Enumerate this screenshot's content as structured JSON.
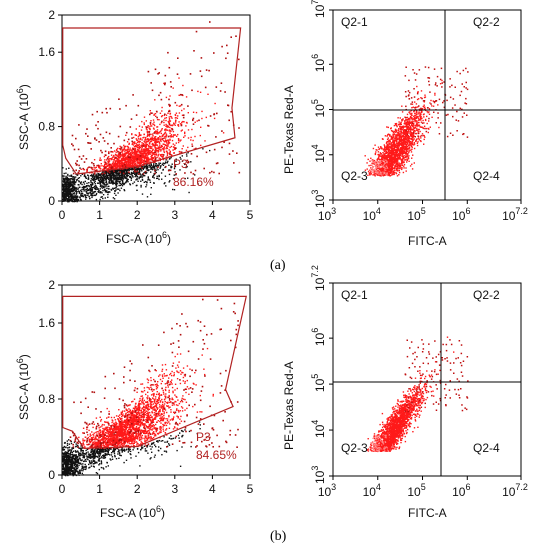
{
  "panels": [
    {
      "label": "(a)",
      "scatter": {
        "ylabel": "SSC-A",
        "ylabel_exp": "(10",
        "ylabel_sup": "6",
        "ylabel_close": ")",
        "xlabel": "FSC-A",
        "xlabel_exp": "(10",
        "xlabel_sup": "6",
        "xlabel_close": ")",
        "gate_name": "P3",
        "gate_pct": "86.16%"
      },
      "quadrant": {
        "ylabel": "PE-Texas Red-A",
        "xlabel": "FITC-A",
        "q1": "Q2-1",
        "q2": "Q2-2",
        "q3": "Q2-3",
        "q4": "Q2-4"
      }
    },
    {
      "label": "(b)",
      "scatter": {
        "ylabel": "SSC-A",
        "ylabel_exp": "(10",
        "ylabel_sup": "6",
        "ylabel_close": ")",
        "xlabel": "FSC-A",
        "xlabel_exp": "(10",
        "xlabel_sup": "6",
        "xlabel_close": ")",
        "gate_name": "P3",
        "gate_pct": "84.65%"
      },
      "quadrant": {
        "ylabel": "PE-Texas Red-A",
        "xlabel": "FITC-A",
        "q1": "Q2-1",
        "q2": "Q2-2",
        "q3": "Q2-3",
        "q4": "Q2-4"
      }
    }
  ],
  "chart_data": [
    {
      "type": "scatter",
      "panel": "a-left",
      "xlabel": "FSC-A (10^6)",
      "ylabel": "SSC-A (10^6)",
      "xlim": [
        0,
        5
      ],
      "ylim": [
        0,
        2
      ],
      "xticks": [
        "0",
        "1",
        "2",
        "3",
        "4",
        "5"
      ],
      "yticks": [
        "0",
        "0.8",
        "1.6",
        "2"
      ],
      "grid": false,
      "colors": {
        "gated": "#ff1a1a",
        "ungated": "#111111",
        "gate_line": "#b22222"
      },
      "gate": {
        "name": "P3",
        "percent": 86.16,
        "vertices": [
          [
            0.02,
            1.86
          ],
          [
            4.75,
            1.86
          ],
          [
            4.52,
            1.0
          ],
          [
            4.6,
            0.68
          ],
          [
            2.0,
            0.37
          ],
          [
            0.38,
            0.29
          ],
          [
            0.1,
            0.46
          ],
          [
            0.02,
            0.6
          ]
        ]
      },
      "populations": [
        {
          "name": "gated",
          "percent": 86.16,
          "center": [
            1.8,
            0.42
          ],
          "spread_x": 0.7,
          "spread_y": 0.16
        },
        {
          "name": "debris",
          "center": [
            0.15,
            0.12
          ],
          "spread_x": 0.15,
          "spread_y": 0.1
        }
      ]
    },
    {
      "type": "scatter",
      "panel": "a-right",
      "xlabel": "FITC-A",
      "ylabel": "PE-Texas Red-A",
      "xscale": "log",
      "yscale": "log",
      "xlim": [
        1000,
        15848932
      ],
      "ylim": [
        1000,
        15848932
      ],
      "xticks": [
        "10^3",
        "10^4",
        "10^5",
        "10^6",
        "10^7.2"
      ],
      "yticks": [
        "10^3",
        "10^4",
        "10^5",
        "10^6",
        "10^7.2"
      ],
      "quadrant_x": 251189,
      "quadrant_y": 125893,
      "quadrants": [
        "Q2-1",
        "Q2-2",
        "Q2-3",
        "Q2-4"
      ],
      "colors": {
        "points": "#ff1a1a"
      }
    },
    {
      "type": "scatter",
      "panel": "b-left",
      "xlabel": "FSC-A (10^6)",
      "ylabel": "SSC-A (10^6)",
      "xlim": [
        0,
        5
      ],
      "ylim": [
        0,
        2
      ],
      "xticks": [
        "0",
        "1",
        "2",
        "3",
        "4",
        "5"
      ],
      "yticks": [
        "0",
        "0.8",
        "1.6",
        "2"
      ],
      "grid": false,
      "colors": {
        "gated": "#ff1a1a",
        "ungated": "#111111",
        "gate_line": "#b22222"
      },
      "gate": {
        "name": "P3",
        "percent": 84.65,
        "vertices": [
          [
            0.02,
            1.88
          ],
          [
            4.9,
            1.88
          ],
          [
            4.35,
            0.9
          ],
          [
            4.55,
            0.72
          ],
          [
            2.0,
            0.3
          ],
          [
            0.58,
            0.28
          ],
          [
            0.28,
            0.46
          ],
          [
            0.02,
            0.5
          ]
        ]
      },
      "populations": [
        {
          "name": "gated",
          "percent": 84.65,
          "center": [
            1.7,
            0.48
          ],
          "spread_x": 0.7,
          "spread_y": 0.17
        },
        {
          "name": "debris",
          "center": [
            0.15,
            0.12
          ],
          "spread_x": 0.15,
          "spread_y": 0.1
        }
      ]
    },
    {
      "type": "scatter",
      "panel": "b-right",
      "xlabel": "FITC-A",
      "ylabel": "PE-Texas Red-A",
      "xscale": "log",
      "yscale": "log",
      "xlim": [
        1000,
        15848932
      ],
      "ylim": [
        1000,
        15848932
      ],
      "xticks": [
        "10^3",
        "10^4",
        "10^5",
        "10^6",
        "10^7.2"
      ],
      "yticks": [
        "10^3",
        "10^4",
        "10^5",
        "10^6",
        "10^7.2"
      ],
      "quadrant_x": 251189,
      "quadrant_y": 125893,
      "quadrants": [
        "Q2-1",
        "Q2-2",
        "Q2-3",
        "Q2-4"
      ],
      "colors": {
        "points": "#ff1a1a"
      }
    }
  ]
}
